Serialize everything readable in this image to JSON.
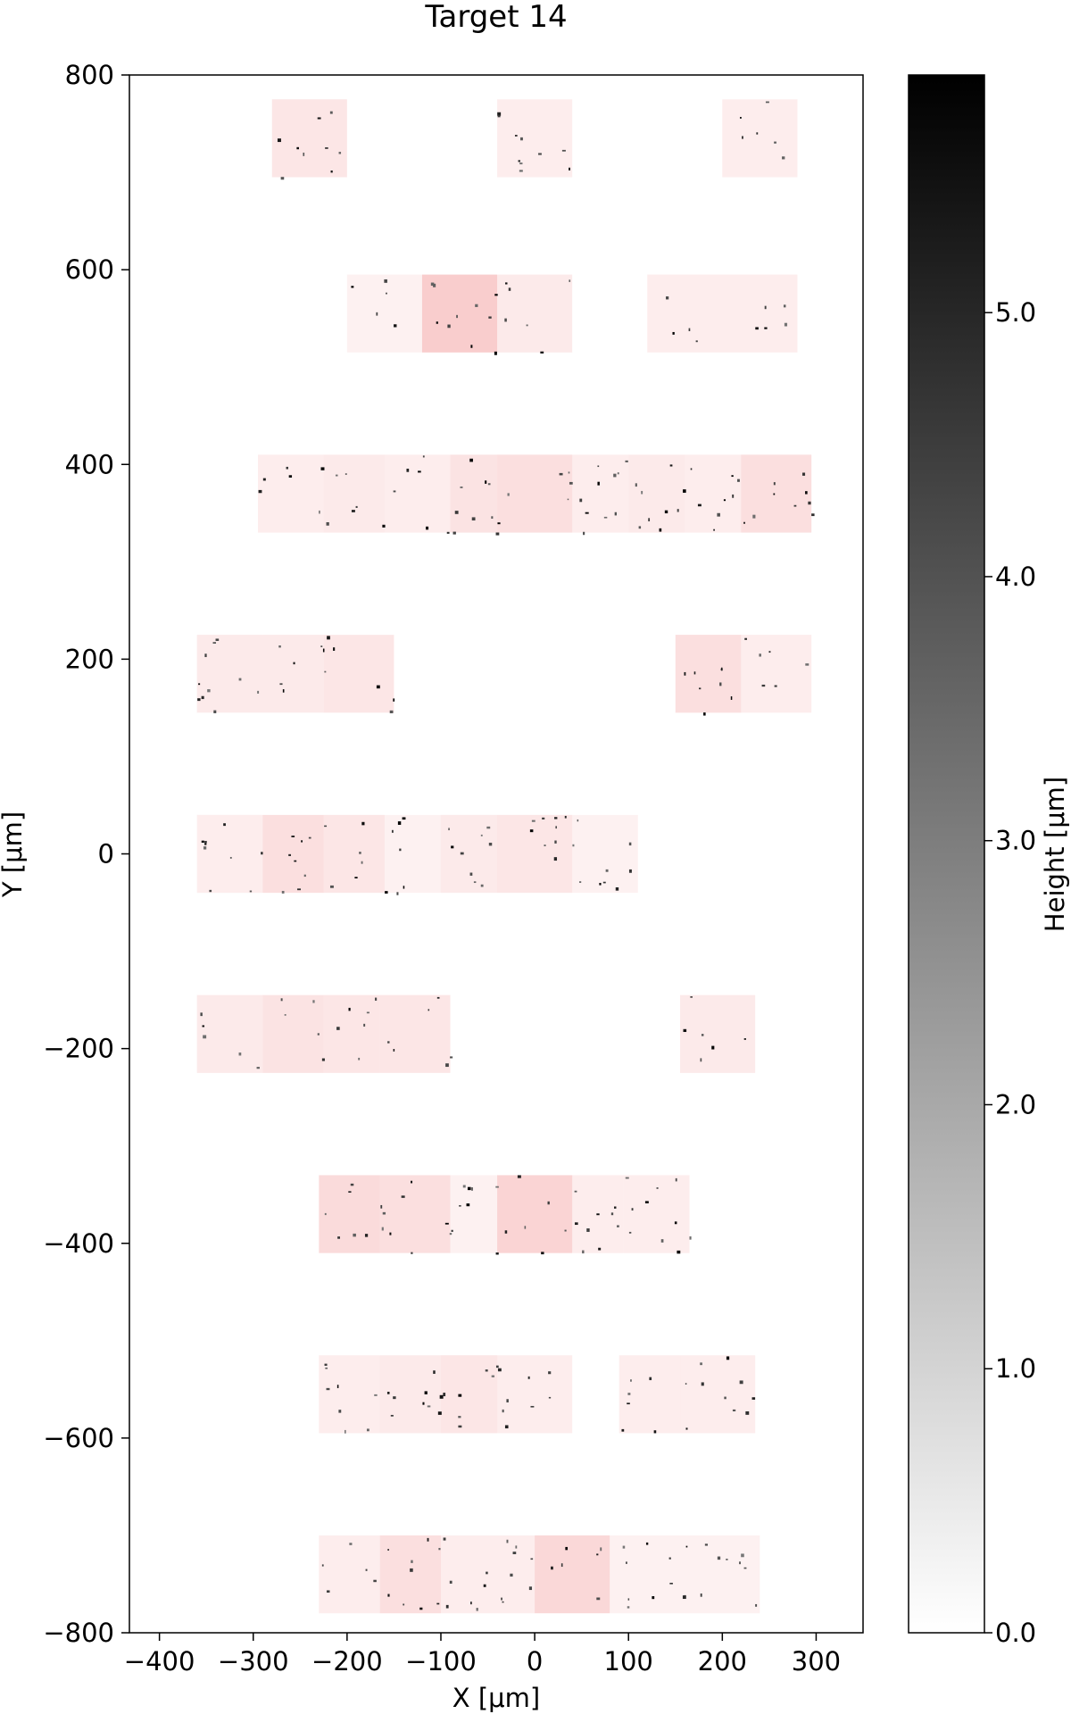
{
  "chart_data": {
    "type": "heatmap",
    "title": "Target 14",
    "xlabel": "X [μm]",
    "ylabel": "Y [μm]",
    "xlim": [
      -432,
      350
    ],
    "ylim": [
      -800,
      800
    ],
    "x_ticks": [
      -400,
      -300,
      -200,
      -100,
      0,
      100,
      200,
      300
    ],
    "x_tick_labels": [
      "−400",
      "−300",
      "−200",
      "−100",
      "0",
      "100",
      "200",
      "300"
    ],
    "y_ticks": [
      800,
      600,
      400,
      200,
      0,
      -200,
      -400,
      -600,
      -800
    ],
    "y_tick_labels": [
      "800",
      "600",
      "400",
      "200",
      "0",
      "−200",
      "−400",
      "−600",
      "−800"
    ],
    "grid": false,
    "colorbar": {
      "label": "Height [μm]",
      "range": [
        0,
        5.9
      ],
      "ticks": [
        0,
        1,
        2,
        3,
        4,
        5
      ],
      "tick_labels": [
        "0.0",
        "1.0",
        "2.0",
        "3.0",
        "4.0",
        "5.0"
      ],
      "colormap": "white-to-black"
    },
    "scan_tile_color": "#f6b8b8",
    "scan_rows": [
      {
        "y": 735,
        "tiles": [
          [
            -280,
            -200,
            0.35
          ],
          [
            -40,
            40,
            0.25
          ],
          [
            200,
            280,
            0.25
          ]
        ]
      },
      {
        "y": 555,
        "tiles": [
          [
            -200,
            -120,
            0.2
          ],
          [
            -120,
            -40,
            0.7
          ],
          [
            -40,
            40,
            0.3
          ],
          [
            120,
            280,
            0.25
          ]
        ]
      },
      {
        "y": 370,
        "tiles": [
          [
            -295,
            -225,
            0.25
          ],
          [
            -225,
            -160,
            0.3
          ],
          [
            -160,
            -90,
            0.25
          ],
          [
            -90,
            -40,
            0.4
          ],
          [
            -40,
            40,
            0.45
          ],
          [
            40,
            100,
            0.25
          ],
          [
            100,
            160,
            0.3
          ],
          [
            160,
            220,
            0.25
          ],
          [
            220,
            295,
            0.45
          ]
        ]
      },
      {
        "y": 185,
        "tiles": [
          [
            -360,
            -290,
            0.3
          ],
          [
            -290,
            -225,
            0.3
          ],
          [
            -225,
            -150,
            0.35
          ],
          [
            150,
            220,
            0.45
          ],
          [
            220,
            295,
            0.25
          ]
        ]
      },
      {
        "y": 0,
        "tiles": [
          [
            -360,
            -290,
            0.25
          ],
          [
            -290,
            -225,
            0.45
          ],
          [
            -225,
            -160,
            0.35
          ],
          [
            -160,
            -100,
            0.2
          ],
          [
            -100,
            -40,
            0.3
          ],
          [
            -40,
            40,
            0.35
          ],
          [
            40,
            110,
            0.2
          ]
        ]
      },
      {
        "y": -185,
        "tiles": [
          [
            -360,
            -290,
            0.3
          ],
          [
            -290,
            -225,
            0.4
          ],
          [
            -225,
            -165,
            0.35
          ],
          [
            -165,
            -90,
            0.35
          ],
          [
            155,
            235,
            0.3
          ]
        ]
      },
      {
        "y": -370,
        "tiles": [
          [
            -230,
            -165,
            0.5
          ],
          [
            -165,
            -90,
            0.45
          ],
          [
            -90,
            -40,
            0.2
          ],
          [
            -40,
            40,
            0.6
          ],
          [
            40,
            95,
            0.25
          ],
          [
            95,
            165,
            0.25
          ]
        ]
      },
      {
        "y": -555,
        "tiles": [
          [
            -230,
            -165,
            0.25
          ],
          [
            -165,
            -100,
            0.3
          ],
          [
            -100,
            -40,
            0.35
          ],
          [
            -40,
            40,
            0.25
          ],
          [
            90,
            155,
            0.25
          ],
          [
            155,
            235,
            0.25
          ]
        ]
      },
      {
        "y": -740,
        "tiles": [
          [
            -230,
            -165,
            0.25
          ],
          [
            -165,
            -100,
            0.45
          ],
          [
            -100,
            -40,
            0.25
          ],
          [
            -40,
            0,
            0.25
          ],
          [
            0,
            80,
            0.55
          ],
          [
            80,
            160,
            0.2
          ],
          [
            160,
            240,
            0.2
          ]
        ]
      }
    ],
    "tile_half_height": 40,
    "particles_per_tile": 5
  }
}
